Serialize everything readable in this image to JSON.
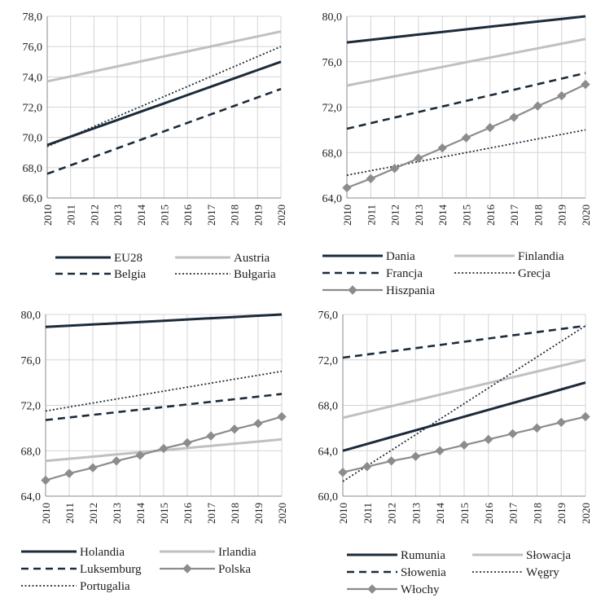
{
  "chart_data": [
    {
      "type": "line",
      "x": [
        "2010",
        "2011",
        "2012",
        "2013",
        "2014",
        "2015",
        "2016",
        "2017",
        "2018",
        "2019",
        "2020"
      ],
      "ylim": [
        66,
        78
      ],
      "yticks": [
        "66,0",
        "68,0",
        "70,0",
        "72,0",
        "74,0",
        "76,0",
        "78,0"
      ],
      "grid": true,
      "legend_position": "bottom",
      "series": [
        {
          "name": "EU28",
          "color": "#1c2b3a",
          "style": "solid-dark",
          "values": [
            69.5,
            70.05,
            70.6,
            71.15,
            71.7,
            72.25,
            72.8,
            73.35,
            73.9,
            74.45,
            75.0
          ]
        },
        {
          "name": "Austria",
          "color": "#c0c0c0",
          "style": "solid-light",
          "values": [
            73.7,
            74.03,
            74.36,
            74.69,
            75.02,
            75.35,
            75.68,
            76.01,
            76.34,
            76.67,
            77.0
          ]
        },
        {
          "name": "Belgia",
          "color": "#1c2b3a",
          "style": "dashed",
          "values": [
            67.6,
            68.16,
            68.72,
            69.28,
            69.84,
            70.4,
            70.96,
            71.52,
            72.08,
            72.64,
            73.2
          ]
        },
        {
          "name": "Bułgaria",
          "color": "#1c2b3a",
          "style": "dotted",
          "values": [
            69.4,
            70.06,
            70.72,
            71.38,
            72.04,
            72.7,
            73.36,
            74.02,
            74.68,
            75.34,
            76.0
          ]
        }
      ]
    },
    {
      "type": "line",
      "x": [
        "2010",
        "2011",
        "2012",
        "2013",
        "2014",
        "2015",
        "2016",
        "2017",
        "2018",
        "2019",
        "2020"
      ],
      "ylim": [
        64,
        80
      ],
      "yticks": [
        "64,0",
        "68,0",
        "72,0",
        "76,0",
        "80,0"
      ],
      "grid": true,
      "legend_position": "bottom",
      "series": [
        {
          "name": "Dania",
          "color": "#1c2b3a",
          "style": "solid-dark",
          "values": [
            77.7,
            77.93,
            78.16,
            78.39,
            78.62,
            78.85,
            79.08,
            79.31,
            79.54,
            79.77,
            80.0
          ]
        },
        {
          "name": "Finlandia",
          "color": "#c0c0c0",
          "style": "solid-light",
          "values": [
            73.9,
            74.31,
            74.72,
            75.13,
            75.54,
            75.95,
            76.36,
            76.77,
            77.18,
            77.59,
            78.0
          ]
        },
        {
          "name": "Francja",
          "color": "#1c2b3a",
          "style": "dashed",
          "values": [
            70.1,
            70.59,
            71.08,
            71.57,
            72.06,
            72.55,
            73.04,
            73.53,
            74.02,
            74.51,
            75.0
          ]
        },
        {
          "name": "Grecja",
          "color": "#1c2b3a",
          "style": "dotted",
          "values": [
            66.0,
            66.4,
            66.8,
            67.2,
            67.6,
            68.0,
            68.4,
            68.8,
            69.2,
            69.6,
            70.0
          ]
        },
        {
          "name": "Hiszpania",
          "color": "#8c8c8c",
          "style": "marker",
          "values": [
            64.9,
            65.7,
            66.6,
            67.5,
            68.4,
            69.3,
            70.2,
            71.1,
            72.1,
            73.0,
            74.0
          ]
        }
      ]
    },
    {
      "type": "line",
      "x": [
        "2010",
        "2011",
        "2012",
        "2013",
        "2014",
        "2015",
        "2016",
        "2017",
        "2018",
        "2019",
        "2020"
      ],
      "ylim": [
        64,
        80
      ],
      "yticks": [
        "64,0",
        "68,0",
        "72,0",
        "76,0",
        "80,0"
      ],
      "grid": true,
      "legend_position": "bottom",
      "series": [
        {
          "name": "Holandia",
          "color": "#1c2b3a",
          "style": "solid-dark",
          "values": [
            78.9,
            79.01,
            79.12,
            79.23,
            79.34,
            79.45,
            79.56,
            79.67,
            79.78,
            79.89,
            80.0
          ]
        },
        {
          "name": "Irlandia",
          "color": "#c0c0c0",
          "style": "solid-light",
          "values": [
            67.1,
            67.29,
            67.48,
            67.67,
            67.86,
            68.05,
            68.24,
            68.43,
            68.62,
            68.81,
            69.0
          ]
        },
        {
          "name": "Luksemburg",
          "color": "#1c2b3a",
          "style": "dashed",
          "values": [
            70.7,
            70.93,
            71.16,
            71.39,
            71.62,
            71.85,
            72.08,
            72.31,
            72.54,
            72.77,
            73.0
          ]
        },
        {
          "name": "Polska",
          "color": "#8c8c8c",
          "style": "marker",
          "values": [
            65.4,
            66.0,
            66.5,
            67.1,
            67.6,
            68.2,
            68.7,
            69.3,
            69.9,
            70.4,
            71.0
          ]
        },
        {
          "name": "Portugalia",
          "color": "#1c2b3a",
          "style": "dotted",
          "values": [
            71.5,
            71.85,
            72.2,
            72.55,
            72.9,
            73.25,
            73.6,
            73.95,
            74.3,
            74.65,
            75.0
          ]
        }
      ]
    },
    {
      "type": "line",
      "x": [
        "2010",
        "2011",
        "2012",
        "2013",
        "2014",
        "2015",
        "2016",
        "2017",
        "2018",
        "2019",
        "2020"
      ],
      "ylim": [
        60,
        76
      ],
      "yticks": [
        "60,0",
        "64,0",
        "68,0",
        "72,0",
        "76,0"
      ],
      "grid": true,
      "legend_position": "bottom",
      "series": [
        {
          "name": "Rumunia",
          "color": "#1c2b3a",
          "style": "solid-dark",
          "values": [
            64.0,
            64.6,
            65.2,
            65.8,
            66.4,
            67.0,
            67.6,
            68.2,
            68.8,
            69.4,
            70.0
          ]
        },
        {
          "name": "Słowacja",
          "color": "#c0c0c0",
          "style": "solid-light",
          "values": [
            66.9,
            67.41,
            67.92,
            68.43,
            68.94,
            69.45,
            69.96,
            70.47,
            70.98,
            71.49,
            72.0
          ]
        },
        {
          "name": "Słowenia",
          "color": "#1c2b3a",
          "style": "dashed",
          "values": [
            72.2,
            72.48,
            72.76,
            73.04,
            73.32,
            73.6,
            73.88,
            74.16,
            74.44,
            74.72,
            75.0
          ]
        },
        {
          "name": "Węgry",
          "color": "#1c2b3a",
          "style": "dotted",
          "values": [
            61.3,
            62.67,
            64.04,
            65.41,
            66.78,
            68.15,
            69.52,
            70.89,
            72.26,
            73.63,
            75.0
          ]
        },
        {
          "name": "Włochy",
          "color": "#8c8c8c",
          "style": "marker",
          "values": [
            62.1,
            62.6,
            63.1,
            63.5,
            64.0,
            64.5,
            65.0,
            65.5,
            66.0,
            66.5,
            67.0
          ]
        }
      ]
    }
  ]
}
